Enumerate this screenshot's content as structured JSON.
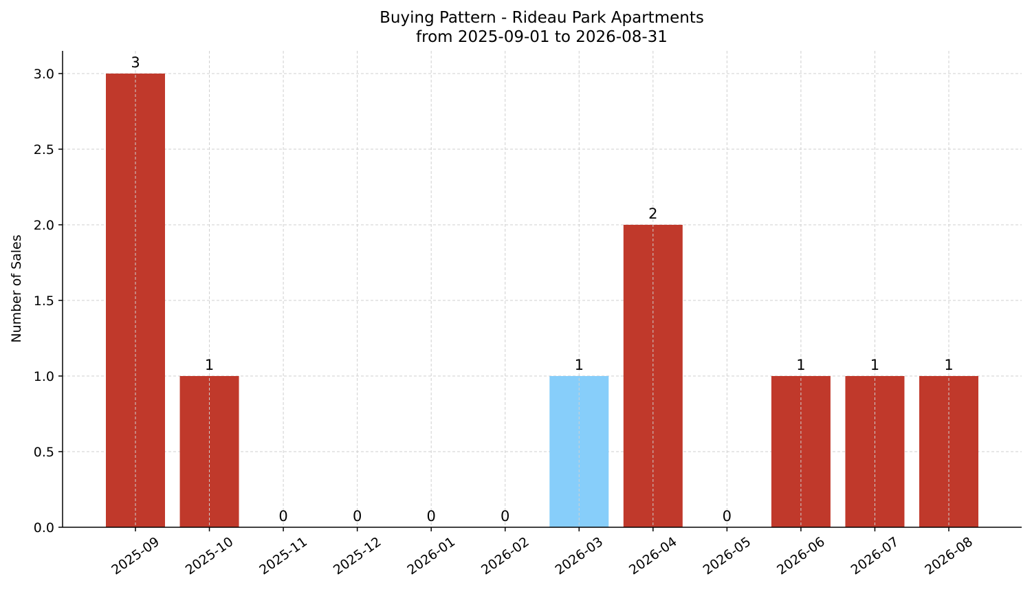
{
  "chart_data": {
    "type": "bar",
    "title": "Buying Pattern - Rideau Park Apartments",
    "subtitle": "from 2025-09-01 to 2026-08-31",
    "xlabel": "",
    "ylabel": "Number of Sales",
    "categories": [
      "2025-09",
      "2025-10",
      "2025-11",
      "2025-12",
      "2026-01",
      "2026-02",
      "2026-03",
      "2026-04",
      "2026-05",
      "2026-06",
      "2026-07",
      "2026-08"
    ],
    "values": [
      3,
      1,
      0,
      0,
      0,
      0,
      1,
      2,
      0,
      1,
      1,
      1
    ],
    "data_labels": [
      "3",
      "1",
      "0",
      "0",
      "0",
      "0",
      "1",
      "2",
      "0",
      "1",
      "1",
      "1"
    ],
    "bar_colors": [
      "#c0392b",
      "#c0392b",
      "#c0392b",
      "#c0392b",
      "#c0392b",
      "#c0392b",
      "#87cefa",
      "#c0392b",
      "#c0392b",
      "#c0392b",
      "#c0392b",
      "#c0392b"
    ],
    "ylim": [
      0,
      3.15
    ],
    "yticks": [
      0.0,
      0.5,
      1.0,
      1.5,
      2.0,
      2.5,
      3.0
    ],
    "ytick_labels": [
      "0.0",
      "0.5",
      "1.0",
      "1.5",
      "2.0",
      "2.5",
      "3.0"
    ],
    "grid": true,
    "legend": "none"
  }
}
